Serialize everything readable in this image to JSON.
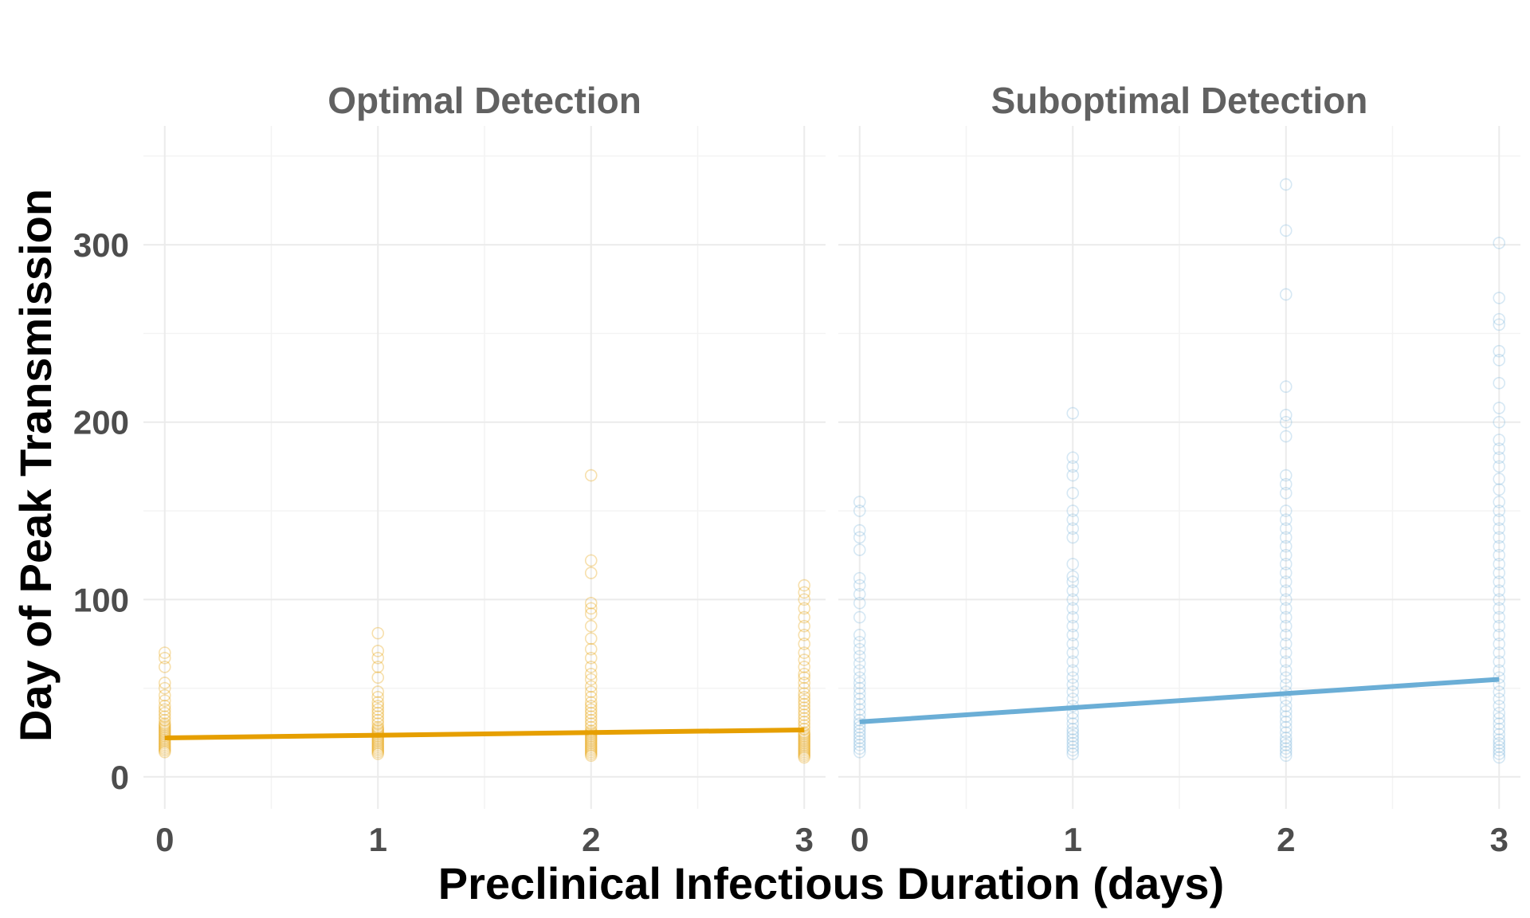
{
  "chart_data": {
    "type": "scatter",
    "xlabel": "Preclinical Infectious Duration (days)",
    "ylabel": "Day of Peak Transmission",
    "xlim": [
      -0.1,
      3.1
    ],
    "ylim": [
      -18,
      367
    ],
    "x_ticks": [
      0,
      1,
      2,
      3
    ],
    "y_ticks": [
      0,
      100,
      200,
      300
    ],
    "grid": true,
    "facets": [
      {
        "title": "Optimal Detection",
        "color": "#E69F00",
        "trend_line": {
          "x": [
            0,
            3
          ],
          "y": [
            22,
            26.5
          ]
        },
        "points": [
          {
            "x": 0,
            "y": [
              14,
              15,
              16,
              17,
              18,
              19,
              20,
              21,
              22,
              23,
              24,
              25,
              26,
              27,
              28,
              29,
              30,
              32,
              34,
              36,
              38,
              40,
              43,
              46,
              50,
              53,
              62,
              67,
              70
            ]
          },
          {
            "x": 1,
            "y": [
              13,
              14,
              15,
              16,
              17,
              18,
              19,
              20,
              21,
              22,
              23,
              24,
              25,
              26,
              27,
              28,
              30,
              32,
              34,
              36,
              38,
              40,
              42,
              45,
              48,
              56,
              62,
              67,
              71,
              81
            ]
          },
          {
            "x": 2,
            "y": [
              12,
              13,
              14,
              15,
              16,
              17,
              18,
              19,
              20,
              21,
              22,
              23,
              24,
              25,
              26,
              28,
              30,
              32,
              34,
              36,
              38,
              40,
              42,
              45,
              48,
              51,
              55,
              58,
              62,
              67,
              72,
              78,
              85,
              92,
              95,
              98,
              115,
              122,
              170
            ]
          },
          {
            "x": 3,
            "y": [
              11,
              12,
              13,
              14,
              15,
              16,
              17,
              18,
              19,
              20,
              21,
              22,
              23,
              24,
              25,
              27,
              29,
              31,
              33,
              35,
              37,
              39,
              41,
              43,
              45,
              47,
              50,
              53,
              56,
              58,
              62,
              66,
              70,
              75,
              80,
              85,
              90,
              95,
              100,
              104,
              108
            ]
          }
        ]
      },
      {
        "title": "Suboptimal Detection",
        "color": "#6BAED6",
        "trend_line": {
          "x": [
            0,
            3
          ],
          "y": [
            31,
            55
          ]
        },
        "points": [
          {
            "x": 0,
            "y": [
              14,
              16,
              18,
              20,
              22,
              24,
              26,
              28,
              30,
              32,
              35,
              38,
              41,
              44,
              47,
              50,
              53,
              56,
              60,
              64,
              68,
              72,
              76,
              80,
              90,
              98,
              103,
              108,
              112,
              128,
              135,
              139,
              150,
              155
            ]
          },
          {
            "x": 1,
            "y": [
              13,
              15,
              17,
              19,
              21,
              23,
              25,
              27,
              30,
              33,
              36,
              40,
              44,
              48,
              52,
              56,
              60,
              65,
              70,
              75,
              80,
              85,
              90,
              95,
              100,
              105,
              110,
              113,
              120,
              135,
              140,
              145,
              150,
              160,
              170,
              175,
              180,
              205
            ]
          },
          {
            "x": 2,
            "y": [
              12,
              14,
              16,
              18,
              20,
              22,
              25,
              28,
              31,
              34,
              37,
              40,
              44,
              48,
              52,
              56,
              60,
              65,
              70,
              75,
              80,
              85,
              90,
              95,
              100,
              105,
              110,
              115,
              120,
              125,
              130,
              135,
              140,
              145,
              150,
              160,
              165,
              170,
              192,
              200,
              204,
              220,
              272,
              308,
              334
            ]
          },
          {
            "x": 3,
            "y": [
              11,
              13,
              15,
              17,
              19,
              21,
              24,
              27,
              30,
              33,
              36,
              40,
              44,
              48,
              52,
              56,
              60,
              65,
              70,
              75,
              80,
              85,
              90,
              95,
              100,
              105,
              110,
              115,
              120,
              125,
              130,
              135,
              140,
              145,
              150,
              155,
              162,
              168,
              175,
              180,
              185,
              190,
              200,
              208,
              222,
              235,
              240,
              255,
              258,
              270,
              301
            ]
          }
        ]
      }
    ]
  }
}
